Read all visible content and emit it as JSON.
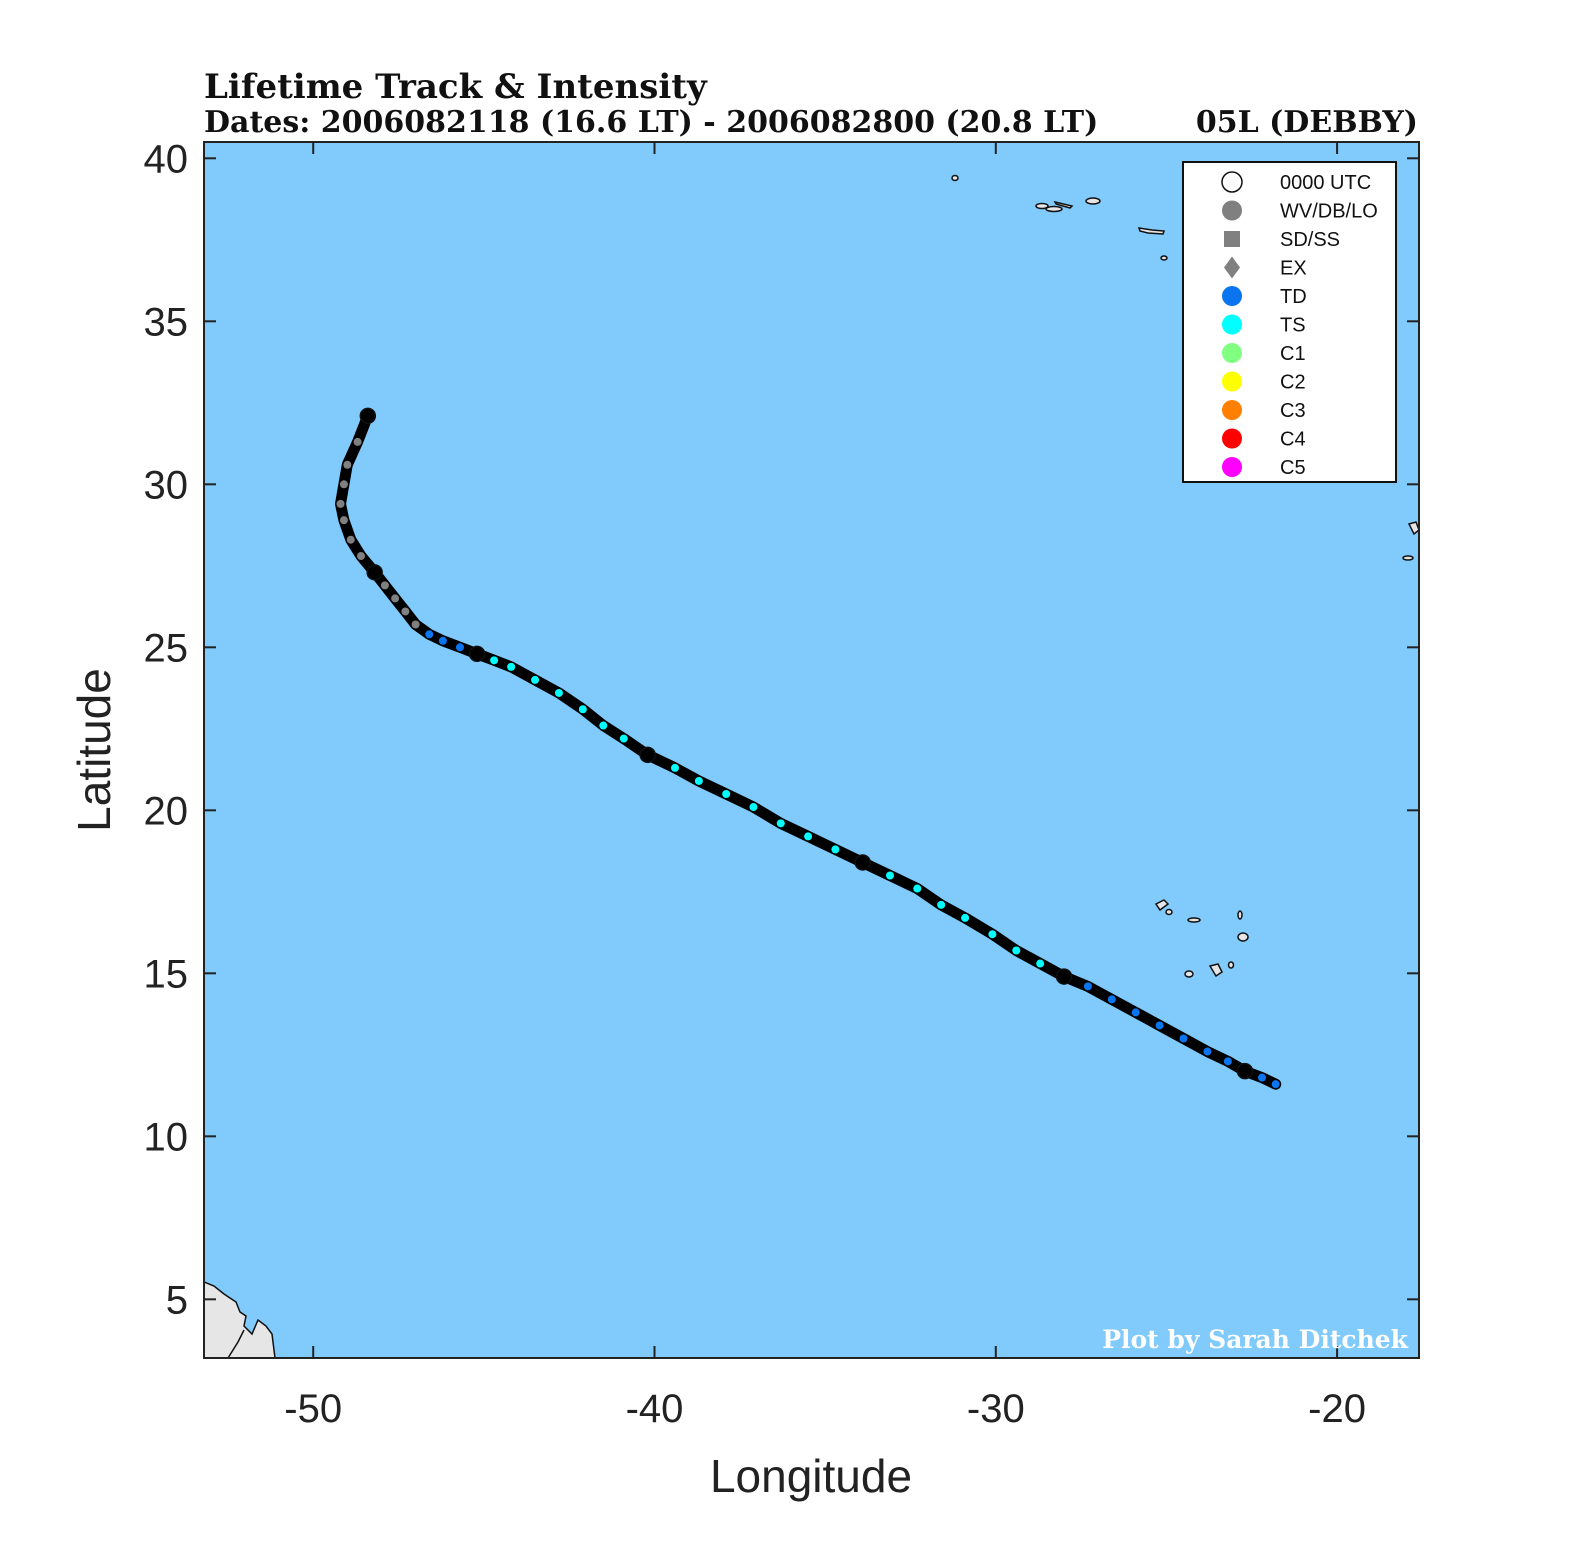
{
  "header": {
    "title": "Lifetime Track & Intensity",
    "dates": "Dates: 2006082118 (16.6 LT) - 2006082800 (20.8 LT)",
    "storm": "05L (DEBBY)"
  },
  "credit": "Plot by Sarah Ditchek",
  "colors": {
    "ocean": "#80CAFC",
    "land": "#E6E6E6",
    "track": "#000000",
    "WV/DB/LO": "#808080",
    "TD": "#0B75F0",
    "TS": "#00FFFF",
    "C1": "#80FF80",
    "C2": "#FFFF00",
    "C3": "#FF8000",
    "C4": "#FF0000",
    "C5": "#FF00FF",
    "utc0000": "#FFFFFF"
  },
  "chart_data": {
    "type": "map-track",
    "xlabel": "Longitude",
    "ylabel": "Latitude",
    "xlim": [
      -53.2,
      -17.6
    ],
    "ylim": [
      3.2,
      40.5
    ],
    "xticks": [
      -50,
      -40,
      -30,
      -20
    ],
    "yticks": [
      5,
      10,
      15,
      20,
      25,
      30,
      35,
      40
    ],
    "legend_position": "top-right",
    "legend": [
      {
        "label": "0000 UTC",
        "marker": "open-circle",
        "color": "#FFFFFF"
      },
      {
        "label": "WV/DB/LO",
        "marker": "circle",
        "color": "#808080"
      },
      {
        "label": "SD/SS",
        "marker": "square",
        "color": "#808080"
      },
      {
        "label": "EX",
        "marker": "diamond",
        "color": "#808080"
      },
      {
        "label": "TD",
        "marker": "circle",
        "color": "#0B75F0"
      },
      {
        "label": "TS",
        "marker": "circle",
        "color": "#00FFFF"
      },
      {
        "label": "C1",
        "marker": "circle",
        "color": "#80FF80"
      },
      {
        "label": "C2",
        "marker": "circle",
        "color": "#FFFF00"
      },
      {
        "label": "C3",
        "marker": "circle",
        "color": "#FF8000"
      },
      {
        "label": "C4",
        "marker": "circle",
        "color": "#FF0000"
      },
      {
        "label": "C5",
        "marker": "circle",
        "color": "#FF00FF"
      }
    ],
    "track": [
      {
        "lon": -21.8,
        "lat": 11.6,
        "cat": "TD"
      },
      {
        "lon": -22.2,
        "lat": 11.8,
        "cat": "TD"
      },
      {
        "lon": -22.7,
        "lat": 12.0,
        "cat": "TD",
        "utc0": true
      },
      {
        "lon": -23.2,
        "lat": 12.3,
        "cat": "TD"
      },
      {
        "lon": -23.8,
        "lat": 12.6,
        "cat": "TD"
      },
      {
        "lon": -24.5,
        "lat": 13.0,
        "cat": "TD"
      },
      {
        "lon": -25.2,
        "lat": 13.4,
        "cat": "TD"
      },
      {
        "lon": -25.9,
        "lat": 13.8,
        "cat": "TD"
      },
      {
        "lon": -26.6,
        "lat": 14.2,
        "cat": "TD"
      },
      {
        "lon": -27.3,
        "lat": 14.6,
        "cat": "TD"
      },
      {
        "lon": -28.0,
        "lat": 14.9,
        "cat": "TS",
        "utc0": true
      },
      {
        "lon": -28.7,
        "lat": 15.3,
        "cat": "TS"
      },
      {
        "lon": -29.4,
        "lat": 15.7,
        "cat": "TS"
      },
      {
        "lon": -30.1,
        "lat": 16.2,
        "cat": "TS"
      },
      {
        "lon": -30.9,
        "lat": 16.7,
        "cat": "TS"
      },
      {
        "lon": -31.6,
        "lat": 17.1,
        "cat": "TS"
      },
      {
        "lon": -32.3,
        "lat": 17.6,
        "cat": "TS"
      },
      {
        "lon": -33.1,
        "lat": 18.0,
        "cat": "TS"
      },
      {
        "lon": -33.9,
        "lat": 18.4,
        "cat": "TS",
        "utc0": true
      },
      {
        "lon": -34.7,
        "lat": 18.8,
        "cat": "TS"
      },
      {
        "lon": -35.5,
        "lat": 19.2,
        "cat": "TS"
      },
      {
        "lon": -36.3,
        "lat": 19.6,
        "cat": "TS"
      },
      {
        "lon": -37.1,
        "lat": 20.1,
        "cat": "TS"
      },
      {
        "lon": -37.9,
        "lat": 20.5,
        "cat": "TS"
      },
      {
        "lon": -38.7,
        "lat": 20.9,
        "cat": "TS"
      },
      {
        "lon": -39.4,
        "lat": 21.3,
        "cat": "TS"
      },
      {
        "lon": -40.2,
        "lat": 21.7,
        "cat": "TS",
        "utc0": true
      },
      {
        "lon": -40.9,
        "lat": 22.2,
        "cat": "TS"
      },
      {
        "lon": -41.5,
        "lat": 22.6,
        "cat": "TS"
      },
      {
        "lon": -42.1,
        "lat": 23.1,
        "cat": "TS"
      },
      {
        "lon": -42.8,
        "lat": 23.6,
        "cat": "TS"
      },
      {
        "lon": -43.5,
        "lat": 24.0,
        "cat": "TS"
      },
      {
        "lon": -44.2,
        "lat": 24.4,
        "cat": "TS"
      },
      {
        "lon": -44.7,
        "lat": 24.6,
        "cat": "TS"
      },
      {
        "lon": -45.2,
        "lat": 24.8,
        "cat": "TS",
        "utc0": true
      },
      {
        "lon": -45.7,
        "lat": 25.0,
        "cat": "TD"
      },
      {
        "lon": -46.2,
        "lat": 25.2,
        "cat": "TD"
      },
      {
        "lon": -46.6,
        "lat": 25.4,
        "cat": "TD"
      },
      {
        "lon": -47.0,
        "lat": 25.7,
        "cat": "WV/DB/LO"
      },
      {
        "lon": -47.3,
        "lat": 26.1,
        "cat": "WV/DB/LO"
      },
      {
        "lon": -47.6,
        "lat": 26.5,
        "cat": "WV/DB/LO"
      },
      {
        "lon": -47.9,
        "lat": 26.9,
        "cat": "WV/DB/LO"
      },
      {
        "lon": -48.2,
        "lat": 27.3,
        "cat": "WV/DB/LO",
        "utc0": true
      },
      {
        "lon": -48.6,
        "lat": 27.8,
        "cat": "WV/DB/LO"
      },
      {
        "lon": -48.9,
        "lat": 28.3,
        "cat": "WV/DB/LO"
      },
      {
        "lon": -49.1,
        "lat": 28.9,
        "cat": "WV/DB/LO"
      },
      {
        "lon": -49.2,
        "lat": 29.4,
        "cat": "WV/DB/LO"
      },
      {
        "lon": -49.1,
        "lat": 30.0,
        "cat": "WV/DB/LO"
      },
      {
        "lon": -49.0,
        "lat": 30.6,
        "cat": "WV/DB/LO"
      },
      {
        "lon": -48.7,
        "lat": 31.3,
        "cat": "WV/DB/LO"
      },
      {
        "lon": -48.4,
        "lat": 32.1,
        "cat": "WV/DB/LO",
        "utc0": true
      }
    ]
  }
}
